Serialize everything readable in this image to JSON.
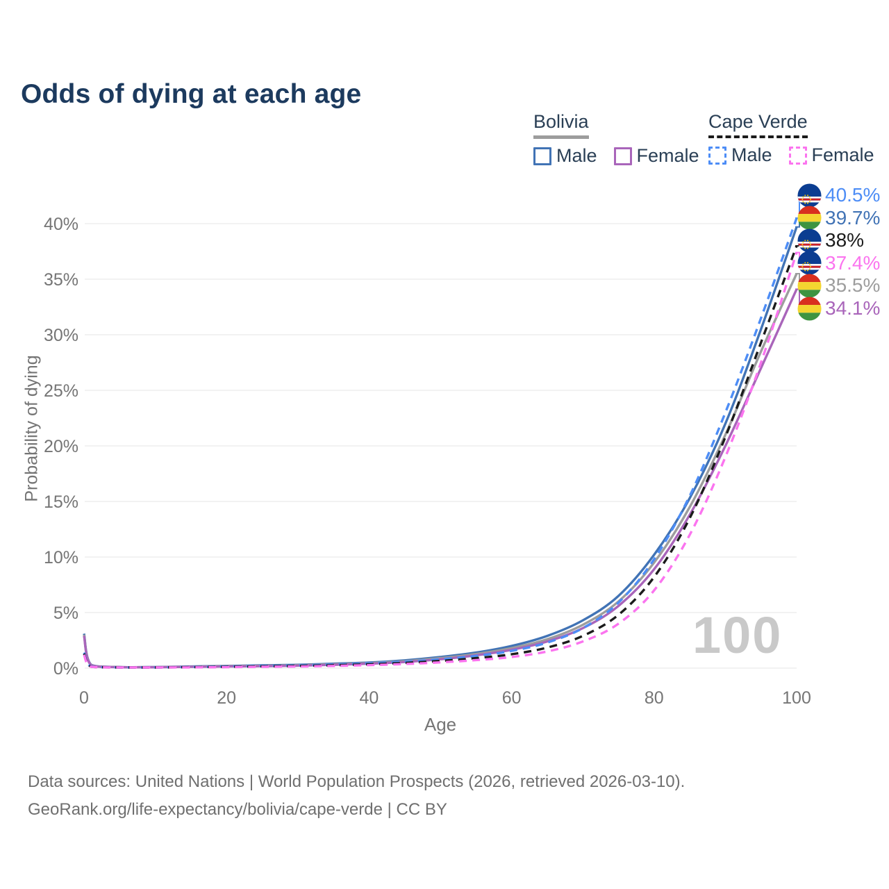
{
  "header": {
    "title": "Odds of dying at each age"
  },
  "legend": {
    "groups": [
      {
        "country": "Bolivia",
        "line_style": "solid",
        "items": [
          {
            "label": "Male",
            "swatch": "bolivia_male"
          },
          {
            "label": "Female",
            "swatch": "bolivia_female"
          }
        ]
      },
      {
        "country": "Cape Verde",
        "line_style": "dashed",
        "items": [
          {
            "label": "Male",
            "swatch": "cape_verde_male"
          },
          {
            "label": "Female",
            "swatch": "cape_verde_female"
          }
        ]
      }
    ]
  },
  "colors": {
    "title": "#1c3a5e",
    "legend_text": "#2a3f55",
    "axis_text": "#757575",
    "grid": "#ededed",
    "watermark": "#c9c9c9",
    "footer_text": "#6f6f6f",
    "bolivia_male": "#4173b5",
    "bolivia_female": "#a965ba",
    "bolivia_all": "#9d9d9d",
    "cape_verde_male": "#4d8df6",
    "cape_verde_female": "#fb74ef",
    "cape_verde_all": "#1b1b1b",
    "flag_bolivia": [
      "#d8301f",
      "#f4d530",
      "#3e9441"
    ],
    "flag_cape_verde": [
      "#0b3d91",
      "#ffffff",
      "#cf2027",
      "#ffcc00"
    ]
  },
  "chart_data": {
    "type": "line",
    "title": "Odds of dying at each age",
    "xlabel": "Age",
    "ylabel": "Probability of dying",
    "xlim": [
      0,
      100
    ],
    "ylim": [
      0,
      43
    ],
    "grid": "horizontal",
    "legend_position": "top-right",
    "age_watermark": "100",
    "x_ticks": [
      {
        "v": 0,
        "label": "0"
      },
      {
        "v": 20,
        "label": "20"
      },
      {
        "v": 40,
        "label": "40"
      },
      {
        "v": 60,
        "label": "60"
      },
      {
        "v": 80,
        "label": "80"
      },
      {
        "v": 100,
        "label": "100"
      }
    ],
    "y_ticks": [
      {
        "v": 0,
        "label": "0%"
      },
      {
        "v": 5,
        "label": "5%"
      },
      {
        "v": 10,
        "label": "10%"
      },
      {
        "v": 15,
        "label": "15%"
      },
      {
        "v": 20,
        "label": "20%"
      },
      {
        "v": 25,
        "label": "25%"
      },
      {
        "v": 30,
        "label": "30%"
      },
      {
        "v": 35,
        "label": "35%"
      },
      {
        "v": 40,
        "label": "40%"
      }
    ],
    "ages": [
      0,
      1,
      5,
      10,
      15,
      20,
      25,
      30,
      35,
      40,
      45,
      50,
      55,
      60,
      65,
      70,
      75,
      80,
      85,
      90,
      95,
      100
    ],
    "series": [
      {
        "id": "cape-verde-male",
        "country": "Cape Verde",
        "sex": "Male",
        "dash": true,
        "color": "#4d8df6",
        "end_label": "40.5%",
        "flag": "cape-verde-flag-icon",
        "values": [
          1.4,
          0.15,
          0.06,
          0.06,
          0.1,
          0.15,
          0.2,
          0.25,
          0.33,
          0.43,
          0.58,
          0.8,
          1.1,
          1.55,
          2.3,
          3.6,
          5.9,
          9.8,
          15.5,
          23.0,
          31.5,
          40.5
        ]
      },
      {
        "id": "bolivia-male",
        "country": "Bolivia",
        "sex": "Male",
        "dash": false,
        "color": "#4173b5",
        "end_label": "39.7%",
        "flag": "bolivia-flag-icon",
        "values": [
          3.1,
          0.3,
          0.1,
          0.1,
          0.15,
          0.2,
          0.25,
          0.3,
          0.4,
          0.5,
          0.7,
          1.0,
          1.4,
          2.0,
          2.9,
          4.3,
          6.5,
          10.2,
          15.3,
          22.0,
          30.5,
          39.7
        ]
      },
      {
        "id": "cape-verde-both",
        "country": "Cape Verde",
        "sex": "Both sexes",
        "dash": true,
        "color": "#1b1b1b",
        "end_label": "38%",
        "flag": "cape-verde-flag-icon",
        "values": [
          1.3,
          0.13,
          0.06,
          0.06,
          0.09,
          0.12,
          0.16,
          0.2,
          0.26,
          0.35,
          0.47,
          0.65,
          0.9,
          1.25,
          1.85,
          2.9,
          4.8,
          8.2,
          13.5,
          20.8,
          29.3,
          38.0
        ]
      },
      {
        "id": "cape-verde-female",
        "country": "Cape Verde",
        "sex": "Female",
        "dash": true,
        "color": "#fb74ef",
        "end_label": "37.4%",
        "flag": "cape-verde-flag-icon",
        "values": [
          1.2,
          0.12,
          0.05,
          0.05,
          0.07,
          0.09,
          0.12,
          0.15,
          0.2,
          0.27,
          0.37,
          0.52,
          0.72,
          1.0,
          1.5,
          2.4,
          4.0,
          7.0,
          12.0,
          19.0,
          27.5,
          37.4
        ]
      },
      {
        "id": "bolivia-both",
        "country": "Bolivia",
        "sex": "Both sexes",
        "dash": false,
        "color": "#9d9d9d",
        "end_label": "35.5%",
        "flag": "bolivia-flag-icon",
        "values": [
          3.0,
          0.28,
          0.1,
          0.09,
          0.13,
          0.18,
          0.21,
          0.26,
          0.35,
          0.45,
          0.62,
          0.9,
          1.27,
          1.8,
          2.6,
          3.9,
          6.0,
          9.5,
          14.5,
          21.0,
          28.5,
          35.5
        ]
      },
      {
        "id": "bolivia-female",
        "country": "Bolivia",
        "sex": "Female",
        "dash": false,
        "color": "#a965ba",
        "end_label": "34.1%",
        "flag": "bolivia-flag-icon",
        "values": [
          2.9,
          0.25,
          0.09,
          0.08,
          0.12,
          0.15,
          0.18,
          0.22,
          0.3,
          0.4,
          0.55,
          0.8,
          1.15,
          1.65,
          2.4,
          3.6,
          5.6,
          8.9,
          13.8,
          20.0,
          27.0,
          34.1
        ]
      }
    ]
  },
  "footer": {
    "line1": "Data sources: United Nations | World Population Prospects (2026, retrieved 2026-03-10).",
    "line2": "GeoRank.org/life-expectancy/bolivia/cape-verde | CC BY"
  }
}
